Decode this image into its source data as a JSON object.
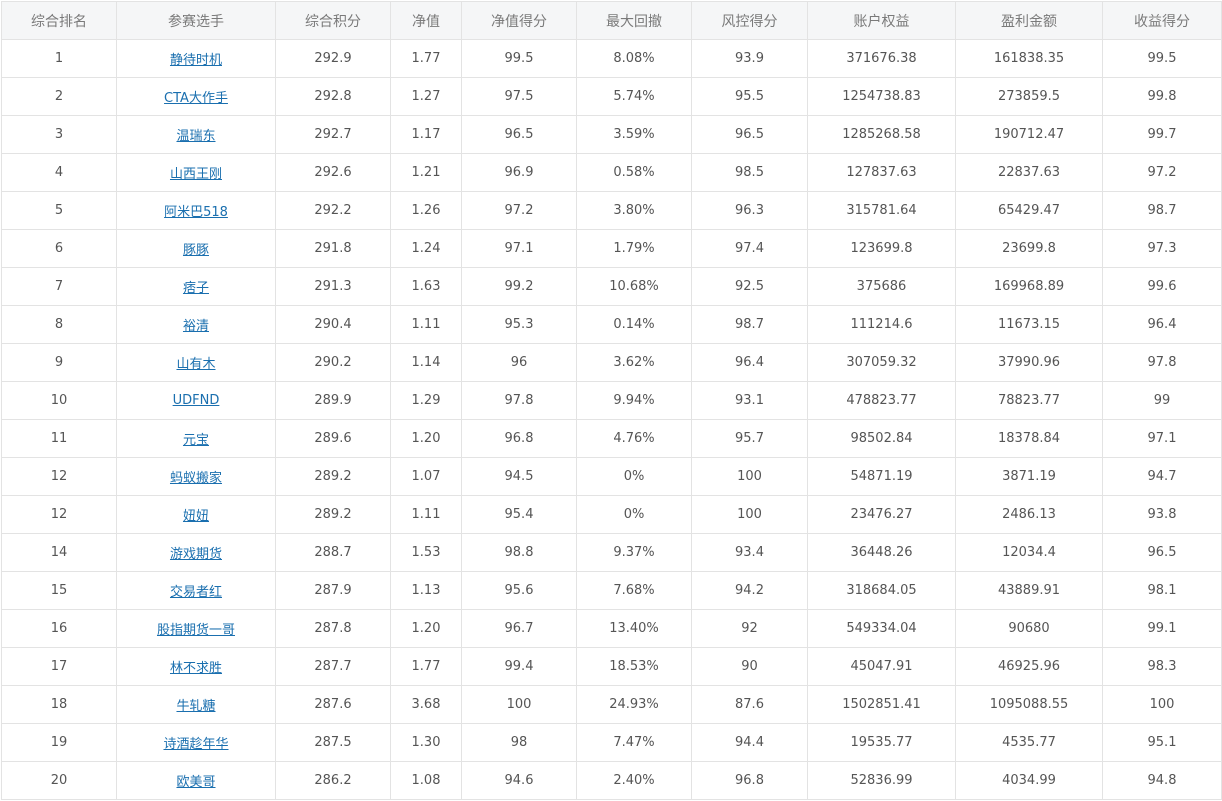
{
  "columns": [
    "综合排名",
    "参赛选手",
    "综合积分",
    "净值",
    "净值得分",
    "最大回撤",
    "风控得分",
    "账户权益",
    "盈利金额",
    "收益得分"
  ],
  "rows": [
    [
      "1",
      "静待时机",
      "292.9",
      "1.77",
      "99.5",
      "8.08%",
      "93.9",
      "371676.38",
      "161838.35",
      "99.5"
    ],
    [
      "2",
      "CTA大作手",
      "292.8",
      "1.27",
      "97.5",
      "5.74%",
      "95.5",
      "1254738.83",
      "273859.5",
      "99.8"
    ],
    [
      "3",
      "温瑞东",
      "292.7",
      "1.17",
      "96.5",
      "3.59%",
      "96.5",
      "1285268.58",
      "190712.47",
      "99.7"
    ],
    [
      "4",
      "山西王刚",
      "292.6",
      "1.21",
      "96.9",
      "0.58%",
      "98.5",
      "127837.63",
      "22837.63",
      "97.2"
    ],
    [
      "5",
      "阿米巴518",
      "292.2",
      "1.26",
      "97.2",
      "3.80%",
      "96.3",
      "315781.64",
      "65429.47",
      "98.7"
    ],
    [
      "6",
      "豚豚",
      "291.8",
      "1.24",
      "97.1",
      "1.79%",
      "97.4",
      "123699.8",
      "23699.8",
      "97.3"
    ],
    [
      "7",
      "痞子",
      "291.3",
      "1.63",
      "99.2",
      "10.68%",
      "92.5",
      "375686",
      "169968.89",
      "99.6"
    ],
    [
      "8",
      "裕清",
      "290.4",
      "1.11",
      "95.3",
      "0.14%",
      "98.7",
      "111214.6",
      "11673.15",
      "96.4"
    ],
    [
      "9",
      "山有木",
      "290.2",
      "1.14",
      "96",
      "3.62%",
      "96.4",
      "307059.32",
      "37990.96",
      "97.8"
    ],
    [
      "10",
      "UDFND",
      "289.9",
      "1.29",
      "97.8",
      "9.94%",
      "93.1",
      "478823.77",
      "78823.77",
      "99"
    ],
    [
      "11",
      "元宝",
      "289.6",
      "1.20",
      "96.8",
      "4.76%",
      "95.7",
      "98502.84",
      "18378.84",
      "97.1"
    ],
    [
      "12",
      "蚂蚁搬家",
      "289.2",
      "1.07",
      "94.5",
      "0%",
      "100",
      "54871.19",
      "3871.19",
      "94.7"
    ],
    [
      "12",
      "妞妞",
      "289.2",
      "1.11",
      "95.4",
      "0%",
      "100",
      "23476.27",
      "2486.13",
      "93.8"
    ],
    [
      "14",
      "游戏期货",
      "288.7",
      "1.53",
      "98.8",
      "9.37%",
      "93.4",
      "36448.26",
      "12034.4",
      "96.5"
    ],
    [
      "15",
      "交易者红",
      "287.9",
      "1.13",
      "95.6",
      "7.68%",
      "94.2",
      "318684.05",
      "43889.91",
      "98.1"
    ],
    [
      "16",
      "股指期货一哥",
      "287.8",
      "1.20",
      "96.7",
      "13.40%",
      "92",
      "549334.04",
      "90680",
      "99.1"
    ],
    [
      "17",
      "林不求胜",
      "287.7",
      "1.77",
      "99.4",
      "18.53%",
      "90",
      "45047.91",
      "46925.96",
      "98.3"
    ],
    [
      "18",
      "牛轧糖",
      "287.6",
      "3.68",
      "100",
      "24.93%",
      "87.6",
      "1502851.41",
      "1095088.55",
      "100"
    ],
    [
      "19",
      "诗酒趁年华",
      "287.5",
      "1.30",
      "98",
      "7.47%",
      "94.4",
      "19535.77",
      "4535.77",
      "95.1"
    ],
    [
      "20",
      "欧美哥",
      "286.2",
      "1.08",
      "94.6",
      "2.40%",
      "96.8",
      "52836.99",
      "4034.99",
      "94.8"
    ]
  ]
}
